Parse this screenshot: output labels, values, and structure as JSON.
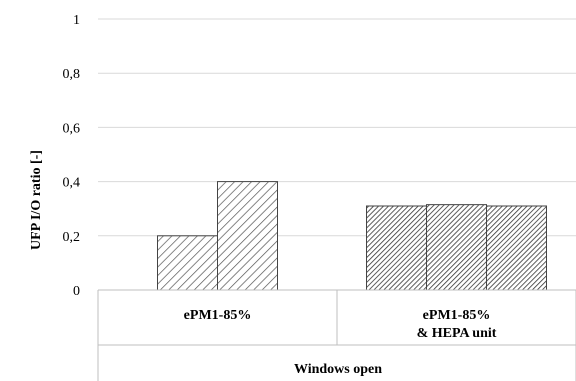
{
  "chart_data": {
    "type": "bar",
    "title": "",
    "ylabel": "UFP I/O ratio [-]",
    "ylim": [
      0,
      1
    ],
    "yticks": [
      "0",
      "0,2",
      "0,4",
      "0,6",
      "0,8",
      "1"
    ],
    "grid": true,
    "groups": [
      {
        "label_lines": [
          "ePM1-85%"
        ],
        "values": [
          0.2,
          0.4
        ],
        "pattern": "light-diagonal"
      },
      {
        "label_lines": [
          "ePM1-85%",
          "& HEPA unit"
        ],
        "values": [
          0.31,
          0.315,
          0.31
        ],
        "pattern": "dense-diagonal"
      }
    ],
    "xgroup_label": "Windows open"
  }
}
